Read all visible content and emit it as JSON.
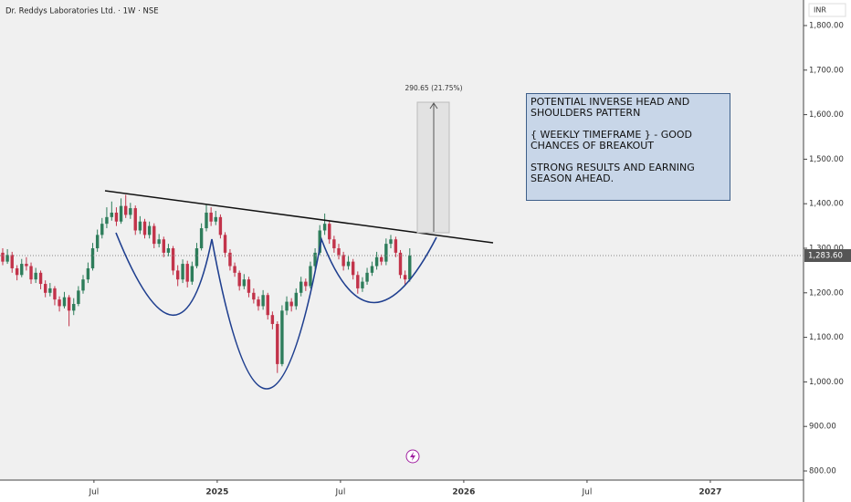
{
  "chart_data": {
    "type": "candlestick",
    "title": "Dr. Reddys Laboratories Ltd. · 1W · NSE",
    "currency": "INR",
    "last_price_label": "1,283.60",
    "up_color": "#2e7d5b",
    "down_color": "#c2334a",
    "grid": false,
    "xlim": [
      2024.119,
      2027.378
    ],
    "xticks": [
      {
        "value": 2024.5,
        "label": "Jul"
      },
      2025,
      {
        "value": 2025.5,
        "label": "Jul"
      },
      2026,
      {
        "value": 2026.5,
        "label": "Jul"
      },
      2027
    ],
    "ylim": [
      779.5,
      1857.4
    ],
    "yticks": [
      {
        "value": 800,
        "label": "800.00"
      },
      {
        "value": 900,
        "label": "900.00"
      },
      {
        "value": 1000,
        "label": "1,000.00"
      },
      {
        "value": 1100,
        "label": "1,100.00"
      },
      {
        "value": 1200,
        "label": "1,200.00"
      },
      {
        "value": 1300,
        "label": "1,300.00"
      },
      {
        "value": 1400,
        "label": "1,400.00"
      },
      {
        "value": 1500,
        "label": "1,500.00"
      },
      {
        "value": 1600,
        "label": "1,600.00"
      },
      {
        "value": 1700,
        "label": "1,700.00"
      },
      {
        "value": 1800,
        "label": "1,800.00"
      }
    ],
    "measure_label": "290.65 (21.75%)",
    "note": [
      "POTENTIAL INVERSE HEAD AND SHOULDERS PATTERN",
      "{ WEEKLY TIMEFRAME } - GOOD CHANCES OF BREAKOUT",
      "STRONG RESULTS AND EARNING SEASON AHEAD."
    ],
    "x": [
      2024.13,
      2024.149,
      2024.168,
      2024.188,
      2024.207,
      2024.226,
      2024.245,
      2024.264,
      2024.284,
      2024.303,
      2024.322,
      2024.341,
      2024.36,
      2024.38,
      2024.399,
      2024.418,
      2024.437,
      2024.456,
      2024.476,
      2024.495,
      2024.514,
      2024.533,
      2024.552,
      2024.572,
      2024.591,
      2024.61,
      2024.629,
      2024.648,
      2024.668,
      2024.687,
      2024.706,
      2024.725,
      2024.744,
      2024.764,
      2024.783,
      2024.802,
      2024.821,
      2024.84,
      2024.86,
      2024.879,
      2024.898,
      2024.917,
      2024.936,
      2024.956,
      2024.975,
      2024.994,
      2025.013,
      2025.032,
      2025.052,
      2025.071,
      2025.09,
      2025.109,
      2025.128,
      2025.148,
      2025.167,
      2025.186,
      2025.205,
      2025.224,
      2025.244,
      2025.263,
      2025.282,
      2025.301,
      2025.32,
      2025.34,
      2025.359,
      2025.378,
      2025.397,
      2025.416,
      2025.436,
      2025.455,
      2025.474,
      2025.493,
      2025.512,
      2025.532,
      2025.551,
      2025.57,
      2025.589,
      2025.608,
      2025.628,
      2025.647,
      2025.666,
      2025.685,
      2025.704,
      2025.724,
      2025.743,
      2025.762,
      2025.781
    ],
    "ohlc": [
      [
        1290,
        1300,
        1262,
        1270
      ],
      [
        1270,
        1298,
        1265,
        1285
      ],
      [
        1285,
        1292,
        1245,
        1255
      ],
      [
        1255,
        1262,
        1228,
        1240
      ],
      [
        1240,
        1276,
        1235,
        1265
      ],
      [
        1265,
        1280,
        1250,
        1260
      ],
      [
        1260,
        1268,
        1220,
        1230
      ],
      [
        1230,
        1256,
        1222,
        1245
      ],
      [
        1245,
        1250,
        1208,
        1220
      ],
      [
        1220,
        1228,
        1190,
        1200
      ],
      [
        1200,
        1222,
        1192,
        1210
      ],
      [
        1210,
        1215,
        1172,
        1185
      ],
      [
        1185,
        1192,
        1158,
        1170
      ],
      [
        1170,
        1202,
        1165,
        1190
      ],
      [
        1190,
        1195,
        1125,
        1160
      ],
      [
        1160,
        1188,
        1150,
        1175
      ],
      [
        1175,
        1215,
        1170,
        1205
      ],
      [
        1205,
        1240,
        1198,
        1230
      ],
      [
        1230,
        1268,
        1222,
        1255
      ],
      [
        1255,
        1312,
        1250,
        1300
      ],
      [
        1300,
        1342,
        1292,
        1330
      ],
      [
        1330,
        1368,
        1322,
        1355
      ],
      [
        1355,
        1392,
        1345,
        1370
      ],
      [
        1370,
        1405,
        1362,
        1380
      ],
      [
        1380,
        1392,
        1350,
        1360
      ],
      [
        1360,
        1412,
        1355,
        1395
      ],
      [
        1395,
        1420,
        1368,
        1375
      ],
      [
        1375,
        1402,
        1366,
        1390
      ],
      [
        1390,
        1396,
        1330,
        1340
      ],
      [
        1340,
        1372,
        1332,
        1360
      ],
      [
        1360,
        1366,
        1322,
        1330
      ],
      [
        1330,
        1360,
        1322,
        1350
      ],
      [
        1350,
        1356,
        1300,
        1310
      ],
      [
        1310,
        1332,
        1302,
        1320
      ],
      [
        1320,
        1326,
        1280,
        1290
      ],
      [
        1290,
        1310,
        1282,
        1300
      ],
      [
        1300,
        1305,
        1240,
        1250
      ],
      [
        1250,
        1262,
        1215,
        1230
      ],
      [
        1230,
        1275,
        1222,
        1265
      ],
      [
        1265,
        1272,
        1212,
        1225
      ],
      [
        1225,
        1270,
        1218,
        1260
      ],
      [
        1260,
        1312,
        1255,
        1300
      ],
      [
        1300,
        1356,
        1295,
        1345
      ],
      [
        1345,
        1398,
        1338,
        1380
      ],
      [
        1380,
        1392,
        1350,
        1360
      ],
      [
        1360,
        1384,
        1352,
        1370
      ],
      [
        1370,
        1376,
        1322,
        1330
      ],
      [
        1330,
        1336,
        1280,
        1290
      ],
      [
        1290,
        1298,
        1250,
        1260
      ],
      [
        1260,
        1268,
        1236,
        1245
      ],
      [
        1245,
        1250,
        1205,
        1215
      ],
      [
        1215,
        1242,
        1208,
        1230
      ],
      [
        1230,
        1236,
        1190,
        1200
      ],
      [
        1200,
        1210,
        1176,
        1185
      ],
      [
        1185,
        1192,
        1160,
        1170
      ],
      [
        1170,
        1206,
        1162,
        1195
      ],
      [
        1195,
        1200,
        1140,
        1150
      ],
      [
        1150,
        1158,
        1118,
        1130
      ],
      [
        1130,
        1136,
        1020,
        1040
      ],
      [
        1040,
        1172,
        1035,
        1160
      ],
      [
        1160,
        1192,
        1150,
        1180
      ],
      [
        1180,
        1188,
        1158,
        1170
      ],
      [
        1170,
        1210,
        1162,
        1200
      ],
      [
        1200,
        1236,
        1192,
        1225
      ],
      [
        1225,
        1232,
        1204,
        1215
      ],
      [
        1215,
        1270,
        1210,
        1260
      ],
      [
        1260,
        1300,
        1252,
        1290
      ],
      [
        1290,
        1352,
        1285,
        1340
      ],
      [
        1340,
        1378,
        1330,
        1355
      ],
      [
        1355,
        1362,
        1310,
        1320
      ],
      [
        1320,
        1328,
        1290,
        1300
      ],
      [
        1300,
        1310,
        1275,
        1285
      ],
      [
        1285,
        1292,
        1250,
        1260
      ],
      [
        1260,
        1282,
        1252,
        1270
      ],
      [
        1270,
        1276,
        1230,
        1240
      ],
      [
        1240,
        1248,
        1198,
        1210
      ],
      [
        1210,
        1235,
        1202,
        1225
      ],
      [
        1225,
        1256,
        1218,
        1245
      ],
      [
        1245,
        1270,
        1238,
        1260
      ],
      [
        1260,
        1292,
        1252,
        1280
      ],
      [
        1280,
        1286,
        1262,
        1270
      ],
      [
        1270,
        1322,
        1262,
        1310
      ],
      [
        1310,
        1330,
        1300,
        1320
      ],
      [
        1320,
        1326,
        1280,
        1290
      ],
      [
        1290,
        1296,
        1232,
        1240
      ],
      [
        1240,
        1250,
        1218,
        1230
      ],
      [
        1230,
        1300,
        1225,
        1283.6
      ]
    ]
  }
}
